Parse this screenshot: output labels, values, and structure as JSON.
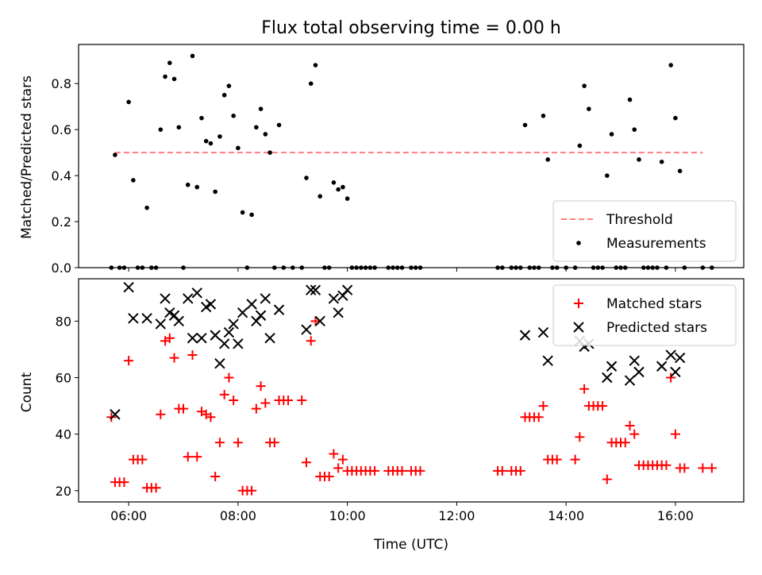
{
  "chart_data": [
    {
      "type": "scatter",
      "title": "Flux total observing time = 0.00 h",
      "xlabel": "",
      "ylabel": "Matched/Predicted stars",
      "xlim": [
        "05:05",
        "17:15"
      ],
      "ylim": [
        0,
        0.97
      ],
      "x_ticks": [
        "06:00",
        "08:00",
        "10:00",
        "12:00",
        "14:00",
        "16:00"
      ],
      "y_ticks": [
        "0.0",
        "0.2",
        "0.4",
        "0.6",
        "0.8"
      ],
      "legend": "lower-right",
      "series": [
        {
          "name": "Threshold",
          "kind": "dashed-line",
          "color": "#ff7f7f",
          "x": [
            "05:45",
            "16:30"
          ],
          "y": [
            0.5,
            0.5
          ]
        },
        {
          "name": "Measurements",
          "kind": "point",
          "color": "#000000",
          "points": [
            [
              "05:41",
              0
            ],
            [
              "05:45",
              0.49
            ],
            [
              "05:50",
              0
            ],
            [
              "05:55",
              0
            ],
            [
              "06:00",
              0.72
            ],
            [
              "06:05",
              0.38
            ],
            [
              "06:10",
              0
            ],
            [
              "06:15",
              0
            ],
            [
              "06:20",
              0.26
            ],
            [
              "06:25",
              0
            ],
            [
              "06:30",
              0
            ],
            [
              "06:35",
              0.6
            ],
            [
              "06:40",
              0.83
            ],
            [
              "06:45",
              0.89
            ],
            [
              "06:50",
              0.82
            ],
            [
              "06:55",
              0.61
            ],
            [
              "07:00",
              0
            ],
            [
              "07:05",
              0.36
            ],
            [
              "07:10",
              0.92
            ],
            [
              "07:15",
              0.35
            ],
            [
              "07:20",
              0.65
            ],
            [
              "07:25",
              0.55
            ],
            [
              "07:30",
              0.54
            ],
            [
              "07:35",
              0.33
            ],
            [
              "07:40",
              0.57
            ],
            [
              "07:45",
              0.75
            ],
            [
              "07:50",
              0.79
            ],
            [
              "07:55",
              0.66
            ],
            [
              "08:00",
              0.52
            ],
            [
              "08:05",
              0.24
            ],
            [
              "08:10",
              0
            ],
            [
              "08:15",
              0.23
            ],
            [
              "08:20",
              0.61
            ],
            [
              "08:25",
              0.69
            ],
            [
              "08:30",
              0.58
            ],
            [
              "08:35",
              0.5
            ],
            [
              "08:40",
              0
            ],
            [
              "08:45",
              0.62
            ],
            [
              "08:50",
              0
            ],
            [
              "09:00",
              0
            ],
            [
              "09:10",
              0
            ],
            [
              "09:15",
              0.39
            ],
            [
              "09:20",
              0.8
            ],
            [
              "09:25",
              0.88
            ],
            [
              "09:30",
              0.31
            ],
            [
              "09:35",
              0
            ],
            [
              "09:40",
              0
            ],
            [
              "09:45",
              0.37
            ],
            [
              "09:50",
              0.34
            ],
            [
              "09:55",
              0.35
            ],
            [
              "10:00",
              0.3
            ],
            [
              "10:05",
              0
            ],
            [
              "10:10",
              0
            ],
            [
              "10:15",
              0
            ],
            [
              "10:20",
              0
            ],
            [
              "10:25",
              0
            ],
            [
              "10:30",
              0
            ],
            [
              "10:45",
              0
            ],
            [
              "10:50",
              0
            ],
            [
              "10:55",
              0
            ],
            [
              "11:00",
              0
            ],
            [
              "11:10",
              0
            ],
            [
              "11:15",
              0
            ],
            [
              "11:20",
              0
            ],
            [
              "12:45",
              0
            ],
            [
              "12:50",
              0
            ],
            [
              "13:00",
              0
            ],
            [
              "13:05",
              0
            ],
            [
              "13:10",
              0
            ],
            [
              "13:15",
              0.62
            ],
            [
              "13:20",
              0
            ],
            [
              "13:25",
              0
            ],
            [
              "13:30",
              0
            ],
            [
              "13:35",
              0.66
            ],
            [
              "13:40",
              0.47
            ],
            [
              "13:45",
              0
            ],
            [
              "13:50",
              0
            ],
            [
              "14:00",
              0
            ],
            [
              "14:10",
              0
            ],
            [
              "14:15",
              0.53
            ],
            [
              "14:20",
              0.79
            ],
            [
              "14:25",
              0.69
            ],
            [
              "14:30",
              0
            ],
            [
              "14:35",
              0
            ],
            [
              "14:40",
              0
            ],
            [
              "14:45",
              0.4
            ],
            [
              "14:50",
              0.58
            ],
            [
              "14:55",
              0
            ],
            [
              "15:00",
              0
            ],
            [
              "15:05",
              0
            ],
            [
              "15:10",
              0.73
            ],
            [
              "15:15",
              0.6
            ],
            [
              "15:20",
              0.47
            ],
            [
              "15:25",
              0
            ],
            [
              "15:30",
              0
            ],
            [
              "15:35",
              0
            ],
            [
              "15:40",
              0
            ],
            [
              "15:45",
              0.46
            ],
            [
              "15:50",
              0
            ],
            [
              "15:55",
              0.88
            ],
            [
              "16:00",
              0.65
            ],
            [
              "16:05",
              0.42
            ],
            [
              "16:10",
              0
            ],
            [
              "16:30",
              0
            ],
            [
              "16:40",
              0
            ]
          ]
        }
      ]
    },
    {
      "type": "scatter",
      "title": "",
      "xlabel": "Time (UTC)",
      "ylabel": "Count",
      "xlim": [
        "05:05",
        "17:15"
      ],
      "ylim": [
        16,
        95
      ],
      "x_ticks": [
        "06:00",
        "08:00",
        "10:00",
        "12:00",
        "14:00",
        "16:00"
      ],
      "y_ticks": [
        "20",
        "40",
        "60",
        "80"
      ],
      "legend": "top-right",
      "series": [
        {
          "name": "Matched stars",
          "marker": "plus",
          "color": "#ff0000",
          "points": [
            [
              "05:41",
              46
            ],
            [
              "05:45",
              23
            ],
            [
              "05:50",
              23
            ],
            [
              "05:55",
              23
            ],
            [
              "06:00",
              66
            ],
            [
              "06:05",
              31
            ],
            [
              "06:10",
              31
            ],
            [
              "06:15",
              31
            ],
            [
              "06:20",
              21
            ],
            [
              "06:25",
              21
            ],
            [
              "06:30",
              21
            ],
            [
              "06:35",
              47
            ],
            [
              "06:40",
              73
            ],
            [
              "06:45",
              74
            ],
            [
              "06:50",
              67
            ],
            [
              "06:55",
              49
            ],
            [
              "07:00",
              49
            ],
            [
              "07:05",
              32
            ],
            [
              "07:10",
              68
            ],
            [
              "07:15",
              32
            ],
            [
              "07:20",
              48
            ],
            [
              "07:25",
              47
            ],
            [
              "07:30",
              46
            ],
            [
              "07:35",
              25
            ],
            [
              "07:40",
              37
            ],
            [
              "07:45",
              54
            ],
            [
              "07:50",
              60
            ],
            [
              "07:55",
              52
            ],
            [
              "08:00",
              37
            ],
            [
              "08:05",
              20
            ],
            [
              "08:10",
              20
            ],
            [
              "08:15",
              20
            ],
            [
              "08:20",
              49
            ],
            [
              "08:25",
              57
            ],
            [
              "08:30",
              51
            ],
            [
              "08:35",
              37
            ],
            [
              "08:40",
              37
            ],
            [
              "08:45",
              52
            ],
            [
              "08:50",
              52
            ],
            [
              "08:55",
              52
            ],
            [
              "09:10",
              52
            ],
            [
              "09:15",
              30
            ],
            [
              "09:20",
              73
            ],
            [
              "09:25",
              80
            ],
            [
              "09:30",
              25
            ],
            [
              "09:35",
              25
            ],
            [
              "09:40",
              25
            ],
            [
              "09:45",
              33
            ],
            [
              "09:50",
              28
            ],
            [
              "09:55",
              31
            ],
            [
              "10:00",
              27
            ],
            [
              "10:05",
              27
            ],
            [
              "10:10",
              27
            ],
            [
              "10:15",
              27
            ],
            [
              "10:20",
              27
            ],
            [
              "10:25",
              27
            ],
            [
              "10:30",
              27
            ],
            [
              "10:45",
              27
            ],
            [
              "10:50",
              27
            ],
            [
              "10:55",
              27
            ],
            [
              "11:00",
              27
            ],
            [
              "11:10",
              27
            ],
            [
              "11:15",
              27
            ],
            [
              "11:20",
              27
            ],
            [
              "12:45",
              27
            ],
            [
              "12:50",
              27
            ],
            [
              "13:00",
              27
            ],
            [
              "13:05",
              27
            ],
            [
              "13:10",
              27
            ],
            [
              "13:15",
              46
            ],
            [
              "13:20",
              46
            ],
            [
              "13:25",
              46
            ],
            [
              "13:30",
              46
            ],
            [
              "13:35",
              50
            ],
            [
              "13:40",
              31
            ],
            [
              "13:45",
              31
            ],
            [
              "13:50",
              31
            ],
            [
              "14:10",
              31
            ],
            [
              "14:15",
              39
            ],
            [
              "14:20",
              56
            ],
            [
              "14:25",
              50
            ],
            [
              "14:30",
              50
            ],
            [
              "14:35",
              50
            ],
            [
              "14:40",
              50
            ],
            [
              "14:45",
              24
            ],
            [
              "14:50",
              37
            ],
            [
              "14:55",
              37
            ],
            [
              "15:00",
              37
            ],
            [
              "15:05",
              37
            ],
            [
              "15:10",
              43
            ],
            [
              "15:15",
              40
            ],
            [
              "15:20",
              29
            ],
            [
              "15:25",
              29
            ],
            [
              "15:30",
              29
            ],
            [
              "15:35",
              29
            ],
            [
              "15:40",
              29
            ],
            [
              "15:45",
              29
            ],
            [
              "15:50",
              29
            ],
            [
              "15:55",
              60
            ],
            [
              "16:00",
              40
            ],
            [
              "16:05",
              28
            ],
            [
              "16:10",
              28
            ],
            [
              "16:30",
              28
            ],
            [
              "16:40",
              28
            ]
          ]
        },
        {
          "name": "Predicted stars",
          "marker": "x",
          "color": "#000000",
          "points": [
            [
              "05:45",
              47
            ],
            [
              "06:00",
              92
            ],
            [
              "06:05",
              81
            ],
            [
              "06:20",
              81
            ],
            [
              "06:35",
              79
            ],
            [
              "06:40",
              88
            ],
            [
              "06:45",
              83
            ],
            [
              "06:50",
              82
            ],
            [
              "06:55",
              80
            ],
            [
              "07:05",
              88
            ],
            [
              "07:10",
              74
            ],
            [
              "07:15",
              90
            ],
            [
              "07:20",
              74
            ],
            [
              "07:25",
              85
            ],
            [
              "07:30",
              86
            ],
            [
              "07:35",
              75
            ],
            [
              "07:40",
              65
            ],
            [
              "07:45",
              72
            ],
            [
              "07:50",
              76
            ],
            [
              "07:55",
              79
            ],
            [
              "08:00",
              72
            ],
            [
              "08:05",
              83
            ],
            [
              "08:15",
              86
            ],
            [
              "08:20",
              80
            ],
            [
              "08:25",
              82
            ],
            [
              "08:30",
              88
            ],
            [
              "08:35",
              74
            ],
            [
              "08:45",
              84
            ],
            [
              "09:15",
              77
            ],
            [
              "09:20",
              91
            ],
            [
              "09:25",
              91
            ],
            [
              "09:30",
              80
            ],
            [
              "09:45",
              88
            ],
            [
              "09:50",
              83
            ],
            [
              "09:55",
              89
            ],
            [
              "10:00",
              91
            ],
            [
              "13:15",
              75
            ],
            [
              "13:35",
              76
            ],
            [
              "13:40",
              66
            ],
            [
              "14:15",
              73
            ],
            [
              "14:20",
              71
            ],
            [
              "14:25",
              72
            ],
            [
              "14:45",
              60
            ],
            [
              "14:50",
              64
            ],
            [
              "15:10",
              59
            ],
            [
              "15:15",
              66
            ],
            [
              "15:20",
              62
            ],
            [
              "15:45",
              64
            ],
            [
              "15:55",
              68
            ],
            [
              "16:00",
              62
            ],
            [
              "16:05",
              67
            ]
          ]
        }
      ]
    }
  ]
}
